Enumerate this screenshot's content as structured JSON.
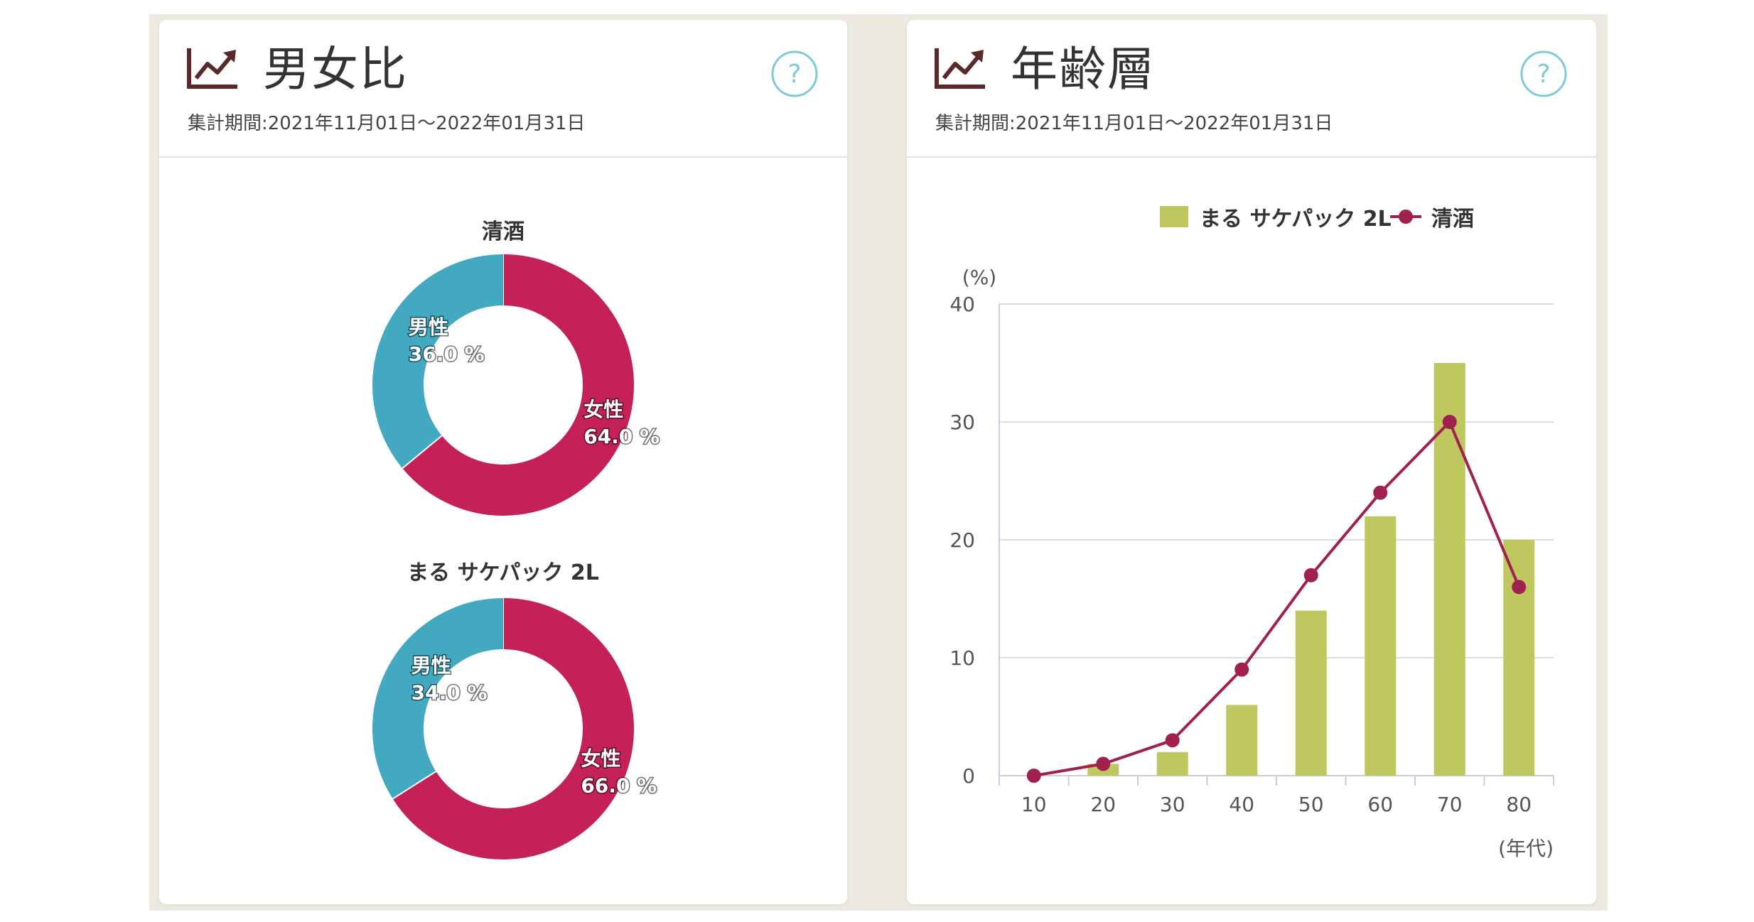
{
  "colors": {
    "female": "#c4215a",
    "male": "#43a9c1",
    "bar": "#bfc85f",
    "line": "#a0204f",
    "help": "#7ecbd6",
    "grid": "#d8dee8"
  },
  "panels": {
    "gender": {
      "title": "男女比",
      "period": "集計期間:2021年11月01日～2022年01月31日",
      "icon": "line-chart-icon",
      "help_icon": "help-circle-icon",
      "help_symbol": "?"
    },
    "age": {
      "title": "年齢層",
      "period": "集計期間:2021年11月01日～2022年01月31日",
      "icon": "line-chart-icon",
      "help_icon": "help-circle-icon",
      "help_symbol": "?"
    }
  },
  "chart_data": [
    {
      "type": "pie",
      "variant": "donut",
      "title": "清酒",
      "slices": [
        {
          "label": "女性",
          "value": 64.0,
          "text": "64.0 %",
          "color": "#c4215a"
        },
        {
          "label": "男性",
          "value": 36.0,
          "text": "36.0 %",
          "color": "#43a9c1"
        }
      ]
    },
    {
      "type": "pie",
      "variant": "donut",
      "title": "まる サケパック 2L",
      "slices": [
        {
          "label": "女性",
          "value": 66.0,
          "text": "66.0 %",
          "color": "#c4215a"
        },
        {
          "label": "男性",
          "value": 34.0,
          "text": "34.0 %",
          "color": "#43a9c1"
        }
      ]
    },
    {
      "type": "bar",
      "combo": "bar+line",
      "categories": [
        "10",
        "20",
        "30",
        "40",
        "50",
        "60",
        "70",
        "80"
      ],
      "series": [
        {
          "name": "まる サケパック 2L",
          "type": "bar",
          "color": "#bfc85f",
          "values": [
            0,
            1,
            2,
            6,
            14,
            22,
            35,
            20
          ]
        },
        {
          "name": "清酒",
          "type": "line",
          "color": "#a0204f",
          "values": [
            0,
            1,
            3,
            9,
            17,
            24,
            30,
            16
          ]
        }
      ],
      "ylabel": "(%)",
      "xlabel": "(年代)",
      "ylim": [
        0,
        40
      ],
      "yticks": [
        "0",
        "10",
        "20",
        "30",
        "40"
      ],
      "grid": true,
      "legend": "top-right"
    }
  ]
}
